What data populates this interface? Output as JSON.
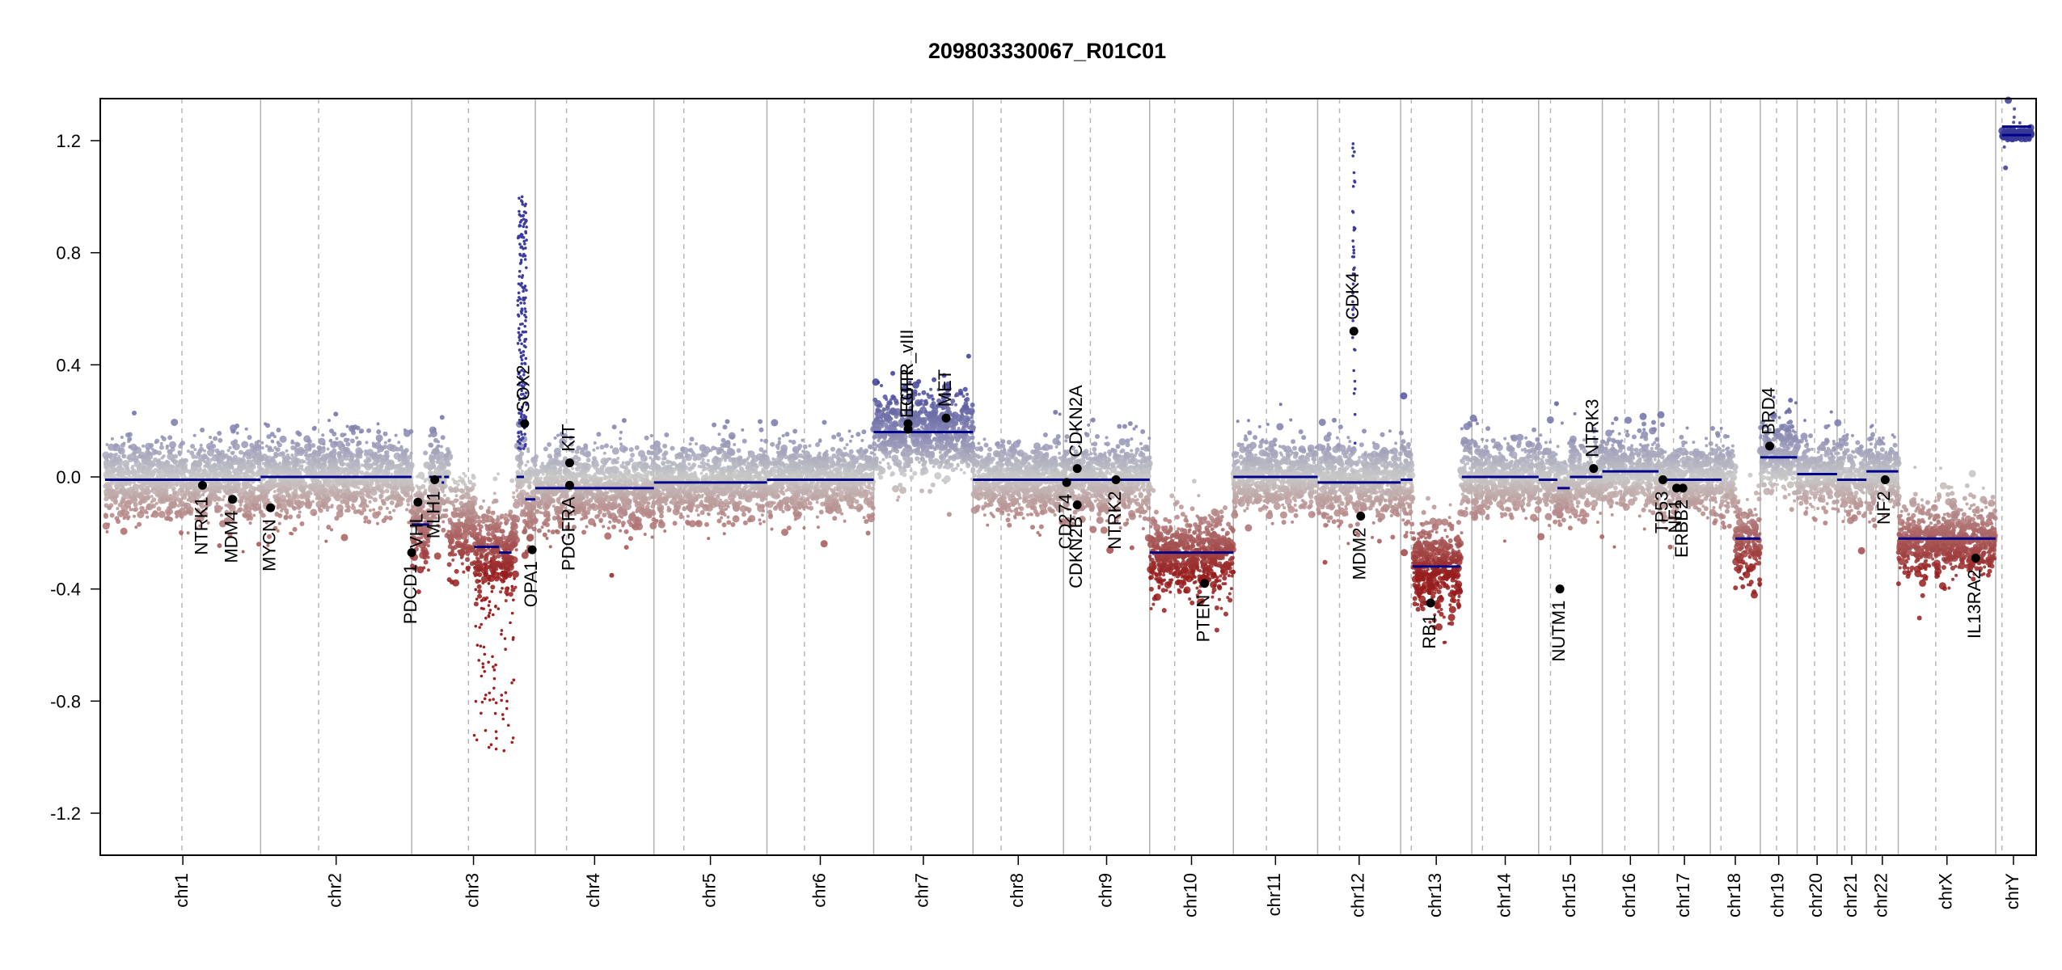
{
  "chart_data": {
    "type": "scatter",
    "title": "209803330067_R01C01",
    "xlabel": "",
    "ylabel": "",
    "ylim": [
      -1.35,
      1.35
    ],
    "y_ticks": [
      -1.2,
      -0.8,
      -0.4,
      0.0,
      0.4,
      0.8,
      1.2
    ],
    "y_tick_labels": [
      "-1.2",
      "-0.8",
      "-0.4",
      "0.0",
      "0.4",
      "0.8",
      "1.2"
    ],
    "genome_length_mb": 3095,
    "chromosomes": [
      {
        "name": "chr1",
        "length_mb": 249,
        "centromere_mb": 123,
        "segments": [
          {
            "start_mb": 0,
            "end_mb": 249,
            "value": -0.01
          }
        ]
      },
      {
        "name": "chr2",
        "length_mb": 242,
        "centromere_mb": 93,
        "segments": [
          {
            "start_mb": 0,
            "end_mb": 242,
            "value": 0.0
          }
        ]
      },
      {
        "name": "chr3",
        "length_mb": 198,
        "centromere_mb": 91,
        "segments": [
          {
            "start_mb": 0,
            "end_mb": 28,
            "value": -0.17
          },
          {
            "start_mb": 28,
            "end_mb": 48,
            "value": 0.0
          },
          {
            "start_mb": 48,
            "end_mb": 52,
            "value": -0.02
          },
          {
            "start_mb": 52,
            "end_mb": 60,
            "value": 0.0
          },
          {
            "start_mb": 100,
            "end_mb": 140,
            "value": -0.25
          },
          {
            "start_mb": 140,
            "end_mb": 160,
            "value": -0.27
          },
          {
            "start_mb": 168,
            "end_mb": 180,
            "value": 0.0
          },
          {
            "start_mb": 182,
            "end_mb": 198,
            "value": -0.08
          }
        ]
      },
      {
        "name": "chr4",
        "length_mb": 190,
        "centromere_mb": 50,
        "segments": [
          {
            "start_mb": 0,
            "end_mb": 190,
            "value": -0.04
          }
        ]
      },
      {
        "name": "chr5",
        "length_mb": 181,
        "centromere_mb": 48,
        "segments": [
          {
            "start_mb": 0,
            "end_mb": 181,
            "value": -0.02
          }
        ]
      },
      {
        "name": "chr6",
        "length_mb": 171,
        "centromere_mb": 60,
        "segments": [
          {
            "start_mb": 0,
            "end_mb": 171,
            "value": -0.01
          }
        ]
      },
      {
        "name": "chr7",
        "length_mb": 159,
        "centromere_mb": 60,
        "segments": [
          {
            "start_mb": 0,
            "end_mb": 159,
            "value": 0.16
          }
        ]
      },
      {
        "name": "chr8",
        "length_mb": 145,
        "centromere_mb": 45,
        "segments": [
          {
            "start_mb": 0,
            "end_mb": 145,
            "value": -0.01
          }
        ]
      },
      {
        "name": "chr9",
        "length_mb": 138,
        "centromere_mb": 43,
        "segments": [
          {
            "start_mb": 0,
            "end_mb": 138,
            "value": -0.01
          }
        ]
      },
      {
        "name": "chr10",
        "length_mb": 134,
        "centromere_mb": 40,
        "segments": [
          {
            "start_mb": 0,
            "end_mb": 134,
            "value": -0.27
          }
        ]
      },
      {
        "name": "chr11",
        "length_mb": 135,
        "centromere_mb": 53,
        "segments": [
          {
            "start_mb": 0,
            "end_mb": 135,
            "value": 0.0
          }
        ]
      },
      {
        "name": "chr12",
        "length_mb": 133,
        "centromere_mb": 35,
        "segments": [
          {
            "start_mb": 0,
            "end_mb": 45,
            "value": -0.02
          },
          {
            "start_mb": 45,
            "end_mb": 133,
            "value": -0.02
          }
        ]
      },
      {
        "name": "chr13",
        "length_mb": 114,
        "centromere_mb": 17,
        "segments": [
          {
            "start_mb": 0,
            "end_mb": 19,
            "value": -0.01
          },
          {
            "start_mb": 19,
            "end_mb": 96,
            "value": -0.32
          },
          {
            "start_mb": 98,
            "end_mb": 114,
            "value": 0.0
          }
        ]
      },
      {
        "name": "chr14",
        "length_mb": 107,
        "centromere_mb": 17,
        "segments": [
          {
            "start_mb": 0,
            "end_mb": 107,
            "value": 0.0
          }
        ]
      },
      {
        "name": "chr15",
        "length_mb": 102,
        "centromere_mb": 19,
        "segments": [
          {
            "start_mb": 0,
            "end_mb": 30,
            "value": -0.01
          },
          {
            "start_mb": 30,
            "end_mb": 50,
            "value": -0.04
          },
          {
            "start_mb": 50,
            "end_mb": 102,
            "value": 0.0
          }
        ]
      },
      {
        "name": "chr16",
        "length_mb": 90,
        "centromere_mb": 36,
        "segments": [
          {
            "start_mb": 0,
            "end_mb": 90,
            "value": 0.02
          }
        ]
      },
      {
        "name": "chr17",
        "length_mb": 83,
        "centromere_mb": 24,
        "segments": [
          {
            "start_mb": 0,
            "end_mb": 83,
            "value": -0.01
          }
        ]
      },
      {
        "name": "chr18",
        "length_mb": 80,
        "centromere_mb": 17,
        "segments": [
          {
            "start_mb": 0,
            "end_mb": 18,
            "value": -0.01
          },
          {
            "start_mb": 40,
            "end_mb": 80,
            "value": -0.22
          }
        ]
      },
      {
        "name": "chr19",
        "length_mb": 59,
        "centromere_mb": 26,
        "segments": [
          {
            "start_mb": 0,
            "end_mb": 59,
            "value": 0.07
          }
        ]
      },
      {
        "name": "chr20",
        "length_mb": 64,
        "centromere_mb": 28,
        "segments": [
          {
            "start_mb": 0,
            "end_mb": 64,
            "value": 0.01
          }
        ]
      },
      {
        "name": "chr21",
        "length_mb": 47,
        "centromere_mb": 12,
        "segments": [
          {
            "start_mb": 0,
            "end_mb": 47,
            "value": -0.01
          }
        ]
      },
      {
        "name": "chr22",
        "length_mb": 51,
        "centromere_mb": 15,
        "segments": [
          {
            "start_mb": 0,
            "end_mb": 51,
            "value": 0.02
          }
        ]
      },
      {
        "name": "chrX",
        "length_mb": 156,
        "centromere_mb": 60,
        "segments": [
          {
            "start_mb": 0,
            "end_mb": 156,
            "value": -0.22
          }
        ]
      },
      {
        "name": "chrY",
        "length_mb": 57,
        "centromere_mb": 10,
        "segments": [
          {
            "start_mb": 10,
            "end_mb": 57,
            "value": 1.22
          },
          {
            "start_mb": 10,
            "end_mb": 57,
            "value": 1.25
          }
        ]
      }
    ],
    "genes": [
      {
        "name": "NTRK1",
        "chrom": "chr1",
        "pos_mb": 156,
        "value": -0.03
      },
      {
        "name": "MDM4",
        "chrom": "chr1",
        "pos_mb": 204,
        "value": -0.08
      },
      {
        "name": "MYCN",
        "chrom": "chr2",
        "pos_mb": 16,
        "value": -0.11
      },
      {
        "name": "VHL",
        "chrom": "chr3",
        "pos_mb": 10,
        "value": -0.09
      },
      {
        "name": "PDCD1",
        "chrom": "chr2",
        "pos_mb": 242,
        "value": -0.27
      },
      {
        "name": "MLH1",
        "chrom": "chr3",
        "pos_mb": 37,
        "value": -0.01
      },
      {
        "name": "SOX2",
        "chrom": "chr3",
        "pos_mb": 181,
        "value": 0.19
      },
      {
        "name": "OPA1",
        "chrom": "chr3",
        "pos_mb": 193,
        "value": -0.26
      },
      {
        "name": "KIT",
        "chrom": "chr4",
        "pos_mb": 55,
        "value": 0.05
      },
      {
        "name": "PDGFRA",
        "chrom": "chr4",
        "pos_mb": 55,
        "value": -0.03
      },
      {
        "name": "EGFR",
        "chrom": "chr7",
        "pos_mb": 55,
        "value": 0.17
      },
      {
        "name": "EGFR_vIII",
        "chrom": "chr7",
        "pos_mb": 55,
        "value": 0.19
      },
      {
        "name": "MET",
        "chrom": "chr7",
        "pos_mb": 116,
        "value": 0.21
      },
      {
        "name": "CD274",
        "chrom": "chr9",
        "pos_mb": 5,
        "value": -0.02
      },
      {
        "name": "CDKN2A",
        "chrom": "chr9",
        "pos_mb": 22,
        "value": 0.03
      },
      {
        "name": "CDKN2B",
        "chrom": "chr9",
        "pos_mb": 22,
        "value": -0.1
      },
      {
        "name": "NTRK2",
        "chrom": "chr9",
        "pos_mb": 84,
        "value": -0.01
      },
      {
        "name": "PTEN",
        "chrom": "chr10",
        "pos_mb": 88,
        "value": -0.38
      },
      {
        "name": "CDK4",
        "chrom": "chr12",
        "pos_mb": 58,
        "value": 0.52
      },
      {
        "name": "MDM2",
        "chrom": "chr12",
        "pos_mb": 69,
        "value": -0.14
      },
      {
        "name": "RB1",
        "chrom": "chr13",
        "pos_mb": 48,
        "value": -0.45
      },
      {
        "name": "NUTM1",
        "chrom": "chr15",
        "pos_mb": 34,
        "value": -0.4
      },
      {
        "name": "NTRK3",
        "chrom": "chr15",
        "pos_mb": 88,
        "value": 0.03
      },
      {
        "name": "TP53",
        "chrom": "chr17",
        "pos_mb": 7,
        "value": -0.01
      },
      {
        "name": "NF1",
        "chrom": "chr17",
        "pos_mb": 29,
        "value": -0.04
      },
      {
        "name": "ERBB2",
        "chrom": "chr17",
        "pos_mb": 39,
        "value": -0.04
      },
      {
        "name": "BRD4",
        "chrom": "chr19",
        "pos_mb": 15,
        "value": 0.11
      },
      {
        "name": "NF2",
        "chrom": "chr22",
        "pos_mb": 30,
        "value": -0.01
      },
      {
        "name": "IL13RA2",
        "chrom": "chrX",
        "pos_mb": 124,
        "value": -0.29
      }
    ],
    "point_cloud": {
      "description_values": "per-chromosome spread (sd) of probe log2 ratios around segment means",
      "spread": {
        "chr1": 0.075,
        "chr2": 0.075,
        "chr3": 0.09,
        "chr4": 0.075,
        "chr5": 0.07,
        "chr6": 0.07,
        "chr7": 0.08,
        "chr8": 0.075,
        "chr9": 0.07,
        "chr10": 0.08,
        "chr11": 0.07,
        "chr12": 0.075,
        "chr13": 0.09,
        "chr14": 0.07,
        "chr15": 0.07,
        "chr16": 0.07,
        "chr17": 0.07,
        "chr18": 0.08,
        "chr19": 0.07,
        "chr20": 0.07,
        "chr21": 0.07,
        "chr22": 0.07,
        "chrX": 0.07,
        "chrY": 0.02
      },
      "sox2_amplicon": {
        "chrom": "chr3",
        "start_mb": 170,
        "end_mb": 184,
        "max_value": 1.0
      },
      "cdk4_amplicon": {
        "chrom": "chr12",
        "start_mb": 56,
        "end_mb": 60,
        "max_value": 1.25
      },
      "chr3_deep_deletion": {
        "chrom": "chr3",
        "start_mb": 100,
        "end_mb": 165,
        "min_value": -0.98
      }
    },
    "colors": {
      "gain": "#3b3ba0",
      "neutral": "#c8c8c8",
      "loss": "#a02020",
      "segment": "#00008b",
      "gene_point": "#000000",
      "chrom_border": "#b0b0b0",
      "centromere": "#b8b8b8"
    }
  }
}
